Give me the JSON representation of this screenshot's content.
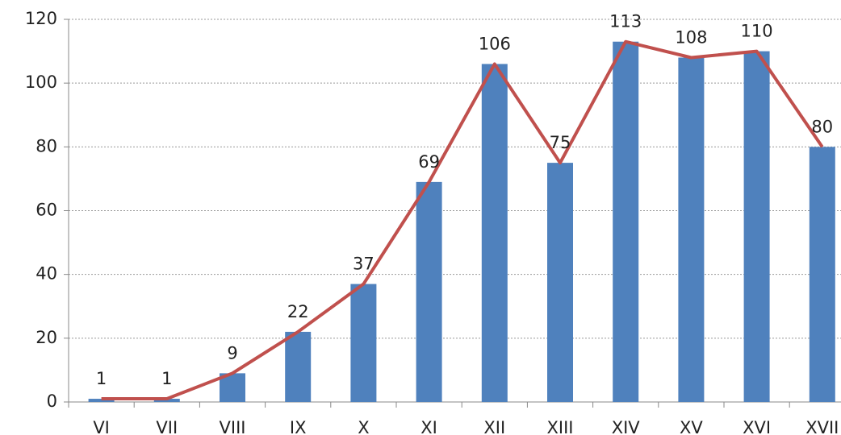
{
  "chart_data": {
    "type": "bar",
    "categories": [
      "VI",
      "VII",
      "VIII",
      "IX",
      "X",
      "XI",
      "XII",
      "XIII",
      "XIV",
      "XV",
      "XVI",
      "XVII"
    ],
    "values": [
      1,
      1,
      9,
      22,
      37,
      69,
      106,
      75,
      113,
      108,
      110,
      80
    ],
    "color": "#4f81bd",
    "line_color": "#c0504d",
    "ylim": [
      0,
      120
    ],
    "yticks": [
      0,
      20,
      40,
      60,
      80,
      100,
      120
    ],
    "grid": true
  }
}
